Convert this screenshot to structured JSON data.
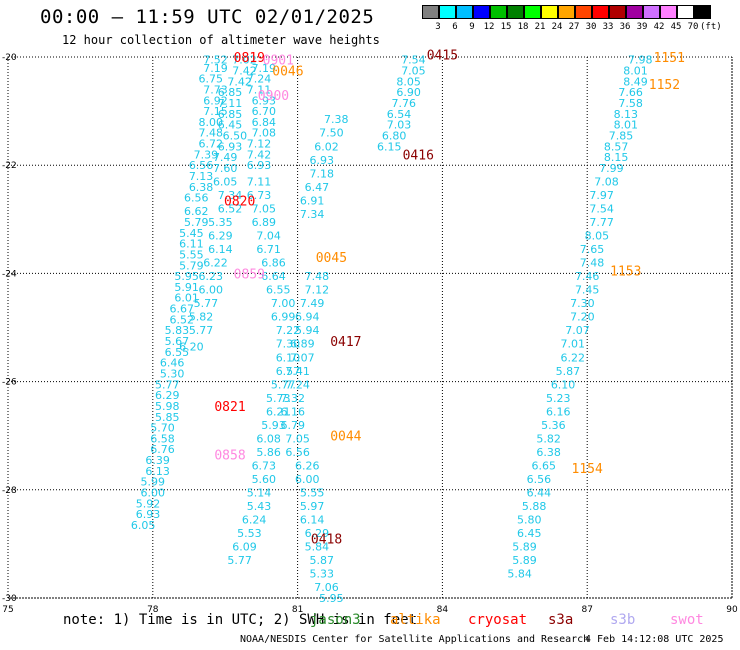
{
  "header": {
    "title": "00:00 — 11:59 UTC 02/01/2025",
    "subtitle": "12 hour collection of altimeter wave heights"
  },
  "legend": {
    "colors": [
      "#808080",
      "#00ffff",
      "#00bfff",
      "#0000ff",
      "#00c000",
      "#008000",
      "#00ff00",
      "#ffff00",
      "#ffa500",
      "#ff4500",
      "#ff0000",
      "#b00000",
      "#a000a0",
      "#d070ff",
      "#ff80ff",
      "#ffffff",
      "#000000"
    ],
    "labels": [
      "3",
      "6",
      "9",
      "12",
      "15",
      "18",
      "21",
      "24",
      "27",
      "30",
      "33",
      "36",
      "39",
      "42",
      "45",
      "70",
      "(ft)"
    ]
  },
  "axes": {
    "x_ticks": [
      "75",
      "78",
      "81",
      "84",
      "87",
      "90"
    ],
    "y_ticks": [
      "-20",
      "-22",
      "-24",
      "-26",
      "-28",
      "-30"
    ]
  },
  "colors": {
    "swh": "#20c8e8",
    "altika": "#ff8c00",
    "cryosat": "#ff0000",
    "s3a": "#8b0000",
    "swot": "#ff88e0",
    "grid": "#000000"
  },
  "tracks": [
    {
      "name": "track-a",
      "points": [
        [
          79.3,
          -20.05,
          "7.52"
        ],
        [
          79.3,
          -20.2,
          "7.19"
        ],
        [
          79.2,
          -20.4,
          "6.75"
        ],
        [
          79.3,
          -20.6,
          "7.73"
        ],
        [
          79.3,
          -20.8,
          "6.92"
        ],
        [
          79.3,
          -21.0,
          "7.15"
        ],
        [
          79.2,
          -21.2,
          "8.00"
        ],
        [
          79.2,
          -21.4,
          "7.48"
        ],
        [
          79.2,
          -21.6,
          "6.72"
        ],
        [
          79.1,
          -21.8,
          "7.39"
        ],
        [
          79.0,
          -22.0,
          "6.56"
        ],
        [
          79.0,
          -22.2,
          "7.13"
        ],
        [
          79.0,
          -22.4,
          "6.38"
        ],
        [
          78.9,
          -22.6,
          "6.56"
        ],
        [
          78.9,
          -22.85,
          "6.62"
        ],
        [
          78.9,
          -23.05,
          "5.79"
        ],
        [
          78.8,
          -23.25,
          "5.45"
        ],
        [
          78.8,
          -23.45,
          "6.11"
        ],
        [
          78.8,
          -23.65,
          "5.55"
        ],
        [
          78.8,
          -23.85,
          "5.79"
        ],
        [
          78.7,
          -24.05,
          "5.95"
        ],
        [
          78.7,
          -24.25,
          "5.91"
        ],
        [
          78.7,
          -24.45,
          "6.01"
        ],
        [
          78.6,
          -24.65,
          "6.67"
        ],
        [
          78.6,
          -24.85,
          "6.52"
        ],
        [
          78.5,
          -25.05,
          "5.83"
        ],
        [
          78.5,
          -25.25,
          "5.67"
        ],
        [
          78.5,
          -25.45,
          "6.55"
        ],
        [
          78.4,
          -25.65,
          "6.46"
        ],
        [
          78.4,
          -25.85,
          "5.30"
        ],
        [
          78.3,
          -26.05,
          "5.77"
        ],
        [
          78.3,
          -26.25,
          "6.29"
        ],
        [
          78.3,
          -26.45,
          "5.98"
        ],
        [
          78.3,
          -26.65,
          "5.85"
        ],
        [
          78.2,
          -26.85,
          "5.70"
        ],
        [
          78.2,
          -27.05,
          "6.58"
        ],
        [
          78.2,
          -27.25,
          "6.76"
        ],
        [
          78.1,
          -27.45,
          "6.39"
        ],
        [
          78.1,
          -27.65,
          "6.13"
        ],
        [
          78.0,
          -27.85,
          "5.99"
        ],
        [
          78.0,
          -28.05,
          "6.00"
        ],
        [
          77.9,
          -28.25,
          "5.92"
        ],
        [
          77.9,
          -28.45,
          "6.93"
        ],
        [
          77.8,
          -28.65,
          "6.05"
        ]
      ]
    },
    {
      "name": "track-b",
      "points": [
        [
          79.9,
          -20.05,
          "7.02"
        ],
        [
          79.9,
          -20.25,
          "7.42"
        ],
        [
          79.8,
          -20.45,
          "7.42"
        ],
        [
          79.6,
          -20.65,
          "6.85"
        ],
        [
          79.6,
          -20.85,
          "7.11"
        ],
        [
          79.6,
          -21.05,
          "6.85"
        ],
        [
          79.6,
          -21.25,
          "6.45"
        ],
        [
          79.7,
          -21.45,
          "6.50"
        ],
        [
          79.6,
          -21.65,
          "6.93"
        ],
        [
          79.5,
          -21.85,
          "7.49"
        ],
        [
          79.5,
          -22.05,
          "7.60"
        ],
        [
          79.5,
          -22.3,
          "6.05"
        ],
        [
          79.6,
          -22.55,
          "7.34"
        ],
        [
          79.6,
          -22.8,
          "6.52"
        ],
        [
          79.4,
          -23.05,
          "5.35"
        ],
        [
          79.4,
          -23.3,
          "6.29"
        ],
        [
          79.4,
          -23.55,
          "6.14"
        ],
        [
          79.3,
          -23.8,
          "6.22"
        ],
        [
          79.2,
          -24.05,
          "6.23"
        ],
        [
          79.2,
          -24.3,
          "6.00"
        ],
        [
          79.1,
          -24.55,
          "5.77"
        ],
        [
          79.0,
          -24.8,
          "5.82"
        ],
        [
          79.0,
          -25.05,
          "5.77"
        ],
        [
          78.8,
          -25.35,
          "6.20"
        ]
      ]
    },
    {
      "name": "track-c",
      "points": [
        [
          80.3,
          -20.2,
          "7.19"
        ],
        [
          80.2,
          -20.4,
          "7.24"
        ],
        [
          80.2,
          -20.6,
          "7.11"
        ],
        [
          80.3,
          -20.8,
          "6.93"
        ],
        [
          80.3,
          -21.0,
          "6.70"
        ],
        [
          80.3,
          -21.2,
          "6.84"
        ],
        [
          80.3,
          -21.4,
          "7.08"
        ],
        [
          80.2,
          -21.6,
          "7.12"
        ],
        [
          80.2,
          -21.8,
          "7.42"
        ],
        [
          80.2,
          -22.0,
          "6.93"
        ],
        [
          80.2,
          -22.3,
          "7.11"
        ],
        [
          80.2,
          -22.55,
          "6.73"
        ],
        [
          80.3,
          -22.8,
          "7.05"
        ],
        [
          80.3,
          -23.05,
          "6.89"
        ],
        [
          80.4,
          -23.3,
          "7.04"
        ],
        [
          80.4,
          -23.55,
          "6.71"
        ],
        [
          80.5,
          -23.8,
          "6.86"
        ],
        [
          80.5,
          -24.05,
          "6.64"
        ],
        [
          80.6,
          -24.3,
          "6.55"
        ],
        [
          80.7,
          -24.55,
          "7.00"
        ],
        [
          80.7,
          -24.8,
          "6.99"
        ],
        [
          80.8,
          -25.05,
          "7.22"
        ],
        [
          80.8,
          -25.3,
          "7.30"
        ],
        [
          80.8,
          -25.55,
          "6.10"
        ],
        [
          80.8,
          -25.8,
          "6.57"
        ],
        [
          80.7,
          -26.05,
          "5.77"
        ],
        [
          80.6,
          -26.3,
          "5.73"
        ],
        [
          80.6,
          -26.55,
          "6.21"
        ],
        [
          80.5,
          -26.8,
          "5.93"
        ],
        [
          80.4,
          -27.05,
          "6.08"
        ],
        [
          80.4,
          -27.3,
          "5.86"
        ],
        [
          80.3,
          -27.55,
          "6.73"
        ],
        [
          80.3,
          -27.8,
          "5.60"
        ],
        [
          80.2,
          -28.05,
          "5.14"
        ],
        [
          80.2,
          -28.3,
          "5.43"
        ],
        [
          80.1,
          -28.55,
          "6.24"
        ],
        [
          80.0,
          -28.8,
          "5.53"
        ],
        [
          79.9,
          -29.05,
          "6.09"
        ],
        [
          79.8,
          -29.3,
          "5.77"
        ]
      ]
    },
    {
      "name": "track-d",
      "points": [
        [
          81.4,
          -24.05,
          "7.48"
        ],
        [
          81.4,
          -24.3,
          "7.12"
        ],
        [
          81.3,
          -24.55,
          "7.49"
        ],
        [
          81.2,
          -24.8,
          "6.94"
        ],
        [
          81.2,
          -25.05,
          "5.94"
        ],
        [
          81.1,
          -25.3,
          "6.89"
        ],
        [
          81.1,
          -25.55,
          "7.07"
        ],
        [
          81.0,
          -25.8,
          "7.41"
        ],
        [
          81.0,
          -26.05,
          "7.24"
        ],
        [
          80.9,
          -26.3,
          "7.32"
        ],
        [
          80.9,
          -26.55,
          "6.16"
        ],
        [
          80.9,
          -26.8,
          "6.79"
        ],
        [
          81.0,
          -27.05,
          "7.05"
        ],
        [
          81.0,
          -27.3,
          "6.56"
        ],
        [
          81.2,
          -27.55,
          "6.26"
        ],
        [
          81.2,
          -27.8,
          "6.00"
        ],
        [
          81.3,
          -28.05,
          "5.55"
        ],
        [
          81.3,
          -28.3,
          "5.97"
        ],
        [
          81.3,
          -28.55,
          "6.14"
        ],
        [
          81.4,
          -28.8,
          "6.29"
        ],
        [
          81.4,
          -29.05,
          "5.84"
        ],
        [
          81.5,
          -29.3,
          "5.87"
        ],
        [
          81.5,
          -29.55,
          "5.33"
        ],
        [
          81.6,
          -29.8,
          "7.06"
        ],
        [
          81.7,
          -30.0,
          "5.95"
        ]
      ]
    },
    {
      "name": "track-e",
      "points": [
        [
          81.8,
          -21.15,
          "7.38"
        ],
        [
          81.7,
          -21.4,
          "7.50"
        ],
        [
          81.6,
          -21.65,
          "6.02"
        ],
        [
          81.5,
          -21.9,
          "6.93"
        ],
        [
          81.5,
          -22.15,
          "7.18"
        ],
        [
          81.4,
          -22.4,
          "6.47"
        ],
        [
          81.3,
          -22.65,
          "6.91"
        ],
        [
          81.3,
          -22.9,
          "7.34"
        ]
      ]
    },
    {
      "name": "track-f",
      "points": [
        [
          83.4,
          -20.05,
          "7.54"
        ],
        [
          83.4,
          -20.25,
          "7.05"
        ],
        [
          83.3,
          -20.45,
          "8.05"
        ],
        [
          83.3,
          -20.65,
          "6.90"
        ],
        [
          83.2,
          -20.85,
          "7.76"
        ],
        [
          83.1,
          -21.05,
          "6.54"
        ],
        [
          83.1,
          -21.25,
          "7.03"
        ],
        [
          83.0,
          -21.45,
          "6.80"
        ],
        [
          82.9,
          -21.65,
          "6.15"
        ]
      ]
    },
    {
      "name": "track-g",
      "points": [
        [
          88.1,
          -20.05,
          "7.98"
        ],
        [
          88.0,
          -20.25,
          "8.01"
        ],
        [
          88.0,
          -20.45,
          "8.49"
        ],
        [
          87.9,
          -20.65,
          "7.66"
        ],
        [
          87.9,
          -20.85,
          "7.58"
        ],
        [
          87.8,
          -21.05,
          "8.13"
        ],
        [
          87.8,
          -21.25,
          "8.01"
        ],
        [
          87.7,
          -21.45,
          "7.85"
        ],
        [
          87.6,
          -21.65,
          "8.57"
        ],
        [
          87.6,
          -21.85,
          "8.15"
        ],
        [
          87.5,
          -22.05,
          "7.99"
        ],
        [
          87.4,
          -22.3,
          "7.08"
        ],
        [
          87.3,
          -22.55,
          "7.97"
        ],
        [
          87.3,
          -22.8,
          "7.54"
        ],
        [
          87.3,
          -23.05,
          "7.77"
        ],
        [
          87.2,
          -23.3,
          "8.05"
        ],
        [
          87.1,
          -23.55,
          "7.65"
        ],
        [
          87.1,
          -23.8,
          "7.48"
        ],
        [
          87.0,
          -24.05,
          "7.46"
        ],
        [
          87.0,
          -24.3,
          "7.45"
        ],
        [
          86.9,
          -24.55,
          "7.30"
        ],
        [
          86.9,
          -24.8,
          "7.20"
        ],
        [
          86.8,
          -25.05,
          "7.07"
        ],
        [
          86.7,
          -25.3,
          "7.01"
        ],
        [
          86.7,
          -25.55,
          "6.22"
        ],
        [
          86.6,
          -25.8,
          "5.87"
        ],
        [
          86.5,
          -26.05,
          "6.10"
        ],
        [
          86.4,
          -26.3,
          "5.23"
        ],
        [
          86.4,
          -26.55,
          "6.16"
        ],
        [
          86.3,
          -26.8,
          "5.36"
        ],
        [
          86.2,
          -27.05,
          "5.82"
        ],
        [
          86.2,
          -27.3,
          "6.38"
        ],
        [
          86.1,
          -27.55,
          "6.65"
        ],
        [
          86.0,
          -27.8,
          "6.56"
        ],
        [
          86.0,
          -28.05,
          "6.44"
        ],
        [
          85.9,
          -28.3,
          "5.88"
        ],
        [
          85.8,
          -28.55,
          "5.80"
        ],
        [
          85.8,
          -28.8,
          "6.45"
        ],
        [
          85.7,
          -29.05,
          "5.89"
        ],
        [
          85.7,
          -29.3,
          "5.89"
        ],
        [
          85.6,
          -29.55,
          "5.84"
        ]
      ]
    }
  ],
  "passes": [
    {
      "label": "0819",
      "lon": 80.0,
      "lat": -20.0,
      "mission": "cryosat"
    },
    {
      "label": "0901",
      "lon": 80.6,
      "lat": -20.05,
      "mission": "swot"
    },
    {
      "label": "0046",
      "lon": 80.8,
      "lat": -20.25,
      "mission": "altika"
    },
    {
      "label": "0900",
      "lon": 80.5,
      "lat": -20.7,
      "mission": "swot"
    },
    {
      "label": "0820",
      "lon": 79.8,
      "lat": -22.65,
      "mission": "cryosat"
    },
    {
      "label": "0859",
      "lon": 80.0,
      "lat": -24.0,
      "mission": "swot"
    },
    {
      "label": "0821",
      "lon": 79.6,
      "lat": -26.45,
      "mission": "cryosat"
    },
    {
      "label": "0858",
      "lon": 79.6,
      "lat": -27.35,
      "mission": "swot"
    },
    {
      "label": "0415",
      "lon": 84.0,
      "lat": -19.95,
      "mission": "s3a"
    },
    {
      "label": "0416",
      "lon": 83.5,
      "lat": -21.8,
      "mission": "s3a"
    },
    {
      "label": "0045",
      "lon": 81.7,
      "lat": -23.7,
      "mission": "altika"
    },
    {
      "label": "0417",
      "lon": 82.0,
      "lat": -25.25,
      "mission": "s3a"
    },
    {
      "label": "0044",
      "lon": 82.0,
      "lat": -27.0,
      "mission": "altika"
    },
    {
      "label": "0418",
      "lon": 81.6,
      "lat": -28.9,
      "mission": "s3a"
    },
    {
      "label": "1151",
      "lon": 88.7,
      "lat": -20.0,
      "mission": "altika"
    },
    {
      "label": "1152",
      "lon": 88.6,
      "lat": -20.5,
      "mission": "altika"
    },
    {
      "label": "1153",
      "lon": 87.8,
      "lat": -23.95,
      "mission": "altika"
    },
    {
      "label": "1154",
      "lon": 87.0,
      "lat": -27.6,
      "mission": "altika"
    }
  ],
  "footer": {
    "note": "note:  1) Time is in UTC;  2) SWH is in feet",
    "missions": {
      "jason": "jason3",
      "altika": "altika",
      "cryosat": "cryosat",
      "s3a": "s3a",
      "s3b": "s3b",
      "swot": "swot"
    },
    "credit": "NOAA/NESDIS Center for Satellite Applications and Research",
    "generated": "4 Feb 14:12:08 UTC 2025"
  }
}
